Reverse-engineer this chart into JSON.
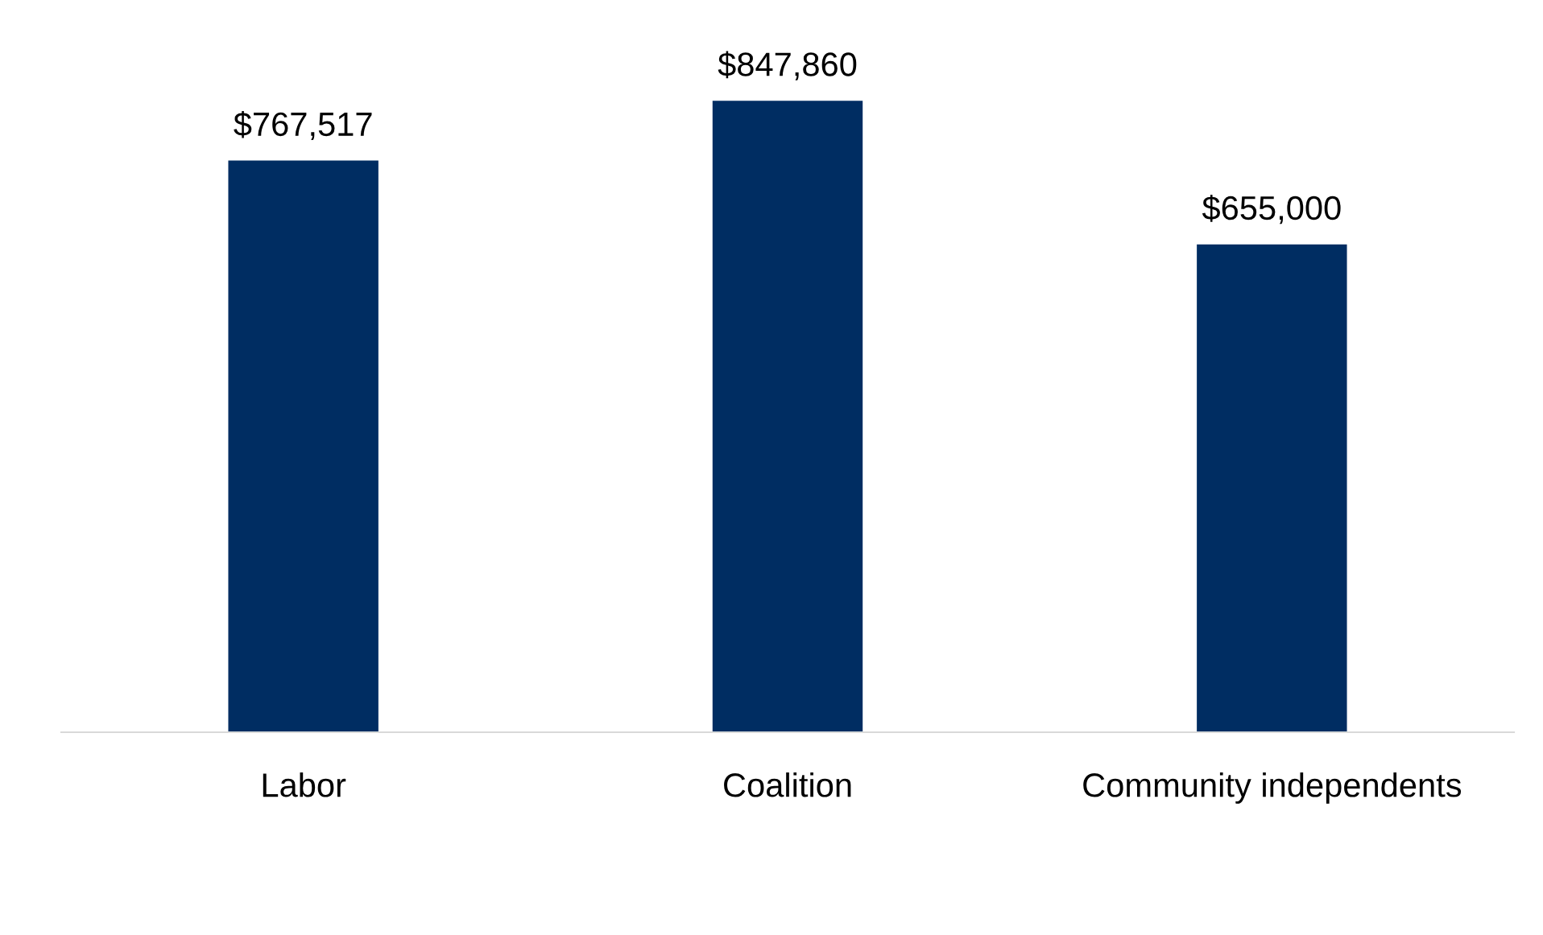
{
  "chart_data": {
    "type": "bar",
    "categories": [
      "Labor",
      "Coalition",
      "Community independents"
    ],
    "values": [
      767517,
      847860,
      655000
    ],
    "value_labels": [
      "$767,517",
      "$847,860",
      "$655,000"
    ],
    "color": "#002d62",
    "grid": false,
    "legend": false
  }
}
